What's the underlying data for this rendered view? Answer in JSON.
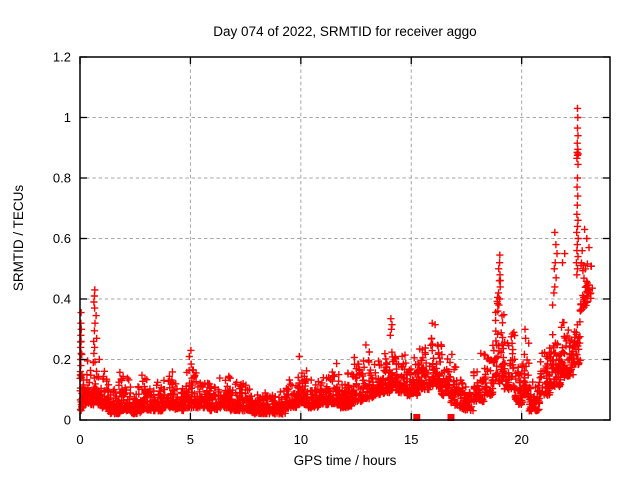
{
  "chart_data": {
    "type": "scatter",
    "title": "Day 074 of 2022, SRMTID for receiver aggo",
    "xlabel": "GPS time / hours",
    "ylabel": "SRMTID / TECUs",
    "xlim": [
      0,
      24
    ],
    "ylim": [
      0,
      1.2
    ],
    "xticks": [
      0,
      5,
      10,
      15,
      20
    ],
    "xtick_labels": [
      "0",
      "5",
      "10",
      "15",
      "20"
    ],
    "yticks": [
      0,
      0.2,
      0.4,
      0.6,
      0.8,
      1,
      1.2
    ],
    "ytick_labels": [
      "0",
      "0.2",
      "0.4",
      "0.6",
      "0.8",
      "1",
      "1.2"
    ],
    "grid": true,
    "legend": "none",
    "marker": "plus",
    "marker_color": "#ff0000",
    "grid_color": "#a6a6a6",
    "frame_color": "#000000",
    "scatter_bands_comment": "dense 30s-cadence series summarized as [x_start,x_end,y_low,y_high,n_points] envelope bins read off the plot",
    "scatter_bands": [
      [
        0.0,
        0.1,
        0.03,
        0.3,
        20
      ],
      [
        0.1,
        0.5,
        0.05,
        0.22,
        48
      ],
      [
        0.5,
        0.9,
        0.05,
        0.22,
        45
      ],
      [
        0.9,
        1.3,
        0.04,
        0.18,
        48
      ],
      [
        1.3,
        1.8,
        0.02,
        0.13,
        52
      ],
      [
        1.8,
        2.3,
        0.03,
        0.16,
        52
      ],
      [
        2.3,
        2.8,
        0.02,
        0.12,
        52
      ],
      [
        2.8,
        3.3,
        0.03,
        0.16,
        52
      ],
      [
        3.3,
        3.8,
        0.03,
        0.14,
        52
      ],
      [
        3.8,
        4.3,
        0.04,
        0.17,
        52
      ],
      [
        4.3,
        4.8,
        0.03,
        0.15,
        52
      ],
      [
        4.8,
        5.3,
        0.04,
        0.2,
        52
      ],
      [
        5.3,
        5.8,
        0.04,
        0.16,
        52
      ],
      [
        5.8,
        6.3,
        0.03,
        0.15,
        52
      ],
      [
        6.3,
        6.8,
        0.04,
        0.17,
        52
      ],
      [
        6.8,
        7.3,
        0.03,
        0.13,
        52
      ],
      [
        7.3,
        7.8,
        0.03,
        0.15,
        52
      ],
      [
        7.8,
        8.3,
        0.02,
        0.11,
        52
      ],
      [
        8.3,
        8.8,
        0.02,
        0.1,
        52
      ],
      [
        8.8,
        9.3,
        0.02,
        0.11,
        52
      ],
      [
        9.3,
        9.8,
        0.04,
        0.15,
        52
      ],
      [
        9.8,
        10.3,
        0.05,
        0.2,
        52
      ],
      [
        10.3,
        10.8,
        0.04,
        0.15,
        52
      ],
      [
        10.8,
        11.3,
        0.05,
        0.17,
        52
      ],
      [
        11.3,
        11.8,
        0.05,
        0.19,
        52
      ],
      [
        11.8,
        12.3,
        0.04,
        0.16,
        52
      ],
      [
        12.3,
        12.8,
        0.06,
        0.23,
        52
      ],
      [
        12.8,
        13.3,
        0.07,
        0.26,
        52
      ],
      [
        13.3,
        13.8,
        0.08,
        0.22,
        52
      ],
      [
        13.8,
        14.3,
        0.09,
        0.27,
        52
      ],
      [
        14.3,
        14.8,
        0.09,
        0.24,
        52
      ],
      [
        14.8,
        15.3,
        0.08,
        0.22,
        52
      ],
      [
        15.3,
        15.8,
        0.1,
        0.27,
        52
      ],
      [
        15.8,
        16.3,
        0.11,
        0.31,
        56
      ],
      [
        16.3,
        16.8,
        0.08,
        0.3,
        52
      ],
      [
        16.8,
        17.3,
        0.04,
        0.25,
        46
      ],
      [
        17.3,
        17.8,
        0.03,
        0.15,
        50
      ],
      [
        17.8,
        18.3,
        0.06,
        0.21,
        50
      ],
      [
        18.3,
        18.7,
        0.08,
        0.3,
        42
      ],
      [
        18.7,
        19.2,
        0.12,
        0.48,
        55
      ],
      [
        19.2,
        19.7,
        0.1,
        0.32,
        50
      ],
      [
        19.7,
        20.05,
        0.05,
        0.2,
        40
      ],
      [
        20.05,
        20.35,
        0.08,
        0.28,
        35
      ],
      [
        20.35,
        20.8,
        0.03,
        0.15,
        48
      ],
      [
        20.8,
        21.3,
        0.08,
        0.26,
        52
      ],
      [
        21.3,
        21.8,
        0.11,
        0.33,
        55
      ],
      [
        21.8,
        22.35,
        0.14,
        0.36,
        60
      ],
      [
        22.35,
        22.65,
        0.18,
        0.45,
        30
      ],
      [
        22.65,
        23.0,
        0.35,
        0.62,
        35
      ],
      [
        23.0,
        23.2,
        0.4,
        0.55,
        12
      ]
    ],
    "notable_points": [
      [
        0.02,
        0.16
      ],
      [
        0.04,
        0.18
      ],
      [
        0.03,
        0.2
      ],
      [
        0.05,
        0.22
      ],
      [
        0.03,
        0.24
      ],
      [
        0.05,
        0.26
      ],
      [
        0.04,
        0.28
      ],
      [
        0.06,
        0.3
      ],
      [
        0.04,
        0.32
      ],
      [
        0.05,
        0.355
      ],
      [
        0.6,
        0.19
      ],
      [
        0.63,
        0.22
      ],
      [
        0.66,
        0.24
      ],
      [
        0.62,
        0.26
      ],
      [
        0.75,
        0.27
      ],
      [
        0.65,
        0.295
      ],
      [
        0.68,
        0.32
      ],
      [
        0.73,
        0.345
      ],
      [
        0.66,
        0.37
      ],
      [
        0.63,
        0.39
      ],
      [
        0.65,
        0.41
      ],
      [
        0.67,
        0.43
      ],
      [
        4.95,
        0.21
      ],
      [
        5.02,
        0.23
      ],
      [
        9.93,
        0.21
      ],
      [
        14.05,
        0.28
      ],
      [
        14.1,
        0.3
      ],
      [
        14.13,
        0.315
      ],
      [
        14.08,
        0.335
      ],
      [
        15.95,
        0.32
      ],
      [
        16.08,
        0.315
      ],
      [
        18.15,
        0.22
      ],
      [
        18.92,
        0.36
      ],
      [
        18.97,
        0.38
      ],
      [
        19.0,
        0.4
      ],
      [
        18.95,
        0.42
      ],
      [
        19.03,
        0.44
      ],
      [
        18.99,
        0.46
      ],
      [
        19.02,
        0.48
      ],
      [
        18.96,
        0.5
      ],
      [
        19.0,
        0.52
      ],
      [
        19.01,
        0.545
      ],
      [
        19.65,
        0.29
      ],
      [
        20.15,
        0.3
      ],
      [
        20.18,
        0.27
      ],
      [
        21.4,
        0.38
      ],
      [
        21.46,
        0.42
      ],
      [
        21.5,
        0.44
      ],
      [
        21.56,
        0.47
      ],
      [
        21.48,
        0.5
      ],
      [
        21.52,
        0.52
      ],
      [
        21.6,
        0.55
      ],
      [
        21.55,
        0.58
      ],
      [
        21.5,
        0.62
      ],
      [
        21.85,
        0.52
      ],
      [
        21.95,
        0.55
      ],
      [
        22.5,
        0.48
      ],
      [
        22.53,
        0.5
      ],
      [
        22.48,
        0.52
      ],
      [
        22.55,
        0.54
      ],
      [
        22.5,
        0.56
      ],
      [
        22.52,
        0.58
      ],
      [
        22.56,
        0.6
      ],
      [
        22.49,
        0.62
      ],
      [
        22.53,
        0.64
      ],
      [
        22.55,
        0.66
      ],
      [
        22.5,
        0.68
      ],
      [
        22.52,
        0.71
      ],
      [
        22.54,
        0.74
      ],
      [
        22.51,
        0.77
      ],
      [
        22.53,
        0.8
      ],
      [
        22.55,
        0.845
      ],
      [
        22.5,
        0.865
      ],
      [
        22.53,
        0.875
      ],
      [
        22.56,
        0.88
      ],
      [
        22.51,
        0.885
      ],
      [
        22.54,
        0.895
      ],
      [
        22.52,
        0.915
      ],
      [
        22.55,
        0.94
      ],
      [
        22.53,
        0.965
      ],
      [
        22.54,
        1.0
      ],
      [
        22.53,
        1.03
      ],
      [
        22.85,
        0.63
      ],
      [
        22.95,
        0.6
      ],
      [
        23.05,
        0.57
      ]
    ],
    "baseline_flag_markers": {
      "marker": "filled-square",
      "y": 0,
      "xs": [
        15.25,
        16.8
      ]
    }
  }
}
